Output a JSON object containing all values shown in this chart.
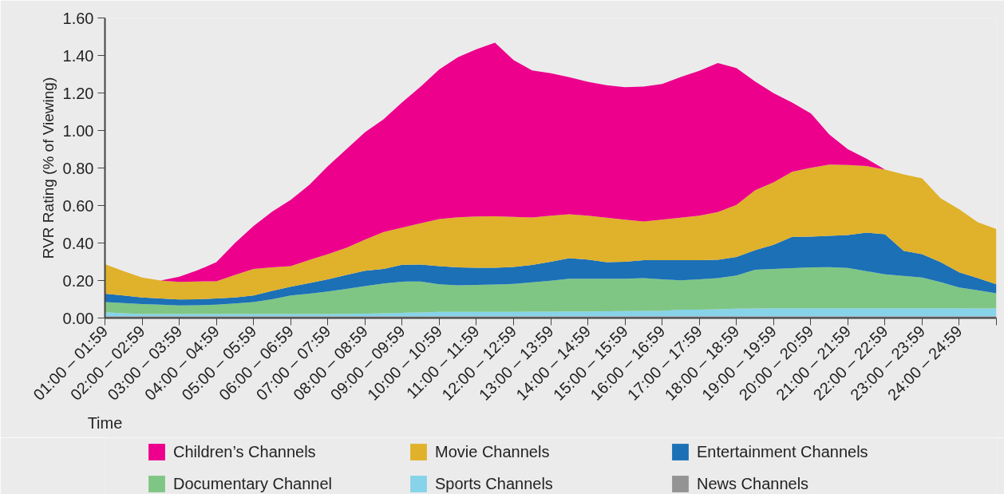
{
  "chart_data": {
    "type": "area",
    "stacked": true,
    "xlabel": "Time",
    "ylabel": "RVR Rating (% of Viewing)",
    "legend": "bottom",
    "grid": false,
    "categories": [
      "01:00 – 01:59",
      null,
      "02:00 – 02:59",
      null,
      "03:00 – 03:59",
      null,
      "04:00 – 04:59",
      null,
      "05:00 – 05:59",
      null,
      "06:00 – 06:59",
      null,
      "07:00 – 07:59",
      null,
      "08:00 – 08:59",
      null,
      "09:00 – 09:59",
      null,
      "10:00 – 10:59",
      null,
      "11:00 – 11:59",
      null,
      "12:00 – 12:59",
      null,
      "13:00 – 13:59",
      null,
      "14:00 – 14:59",
      null,
      "15:00 – 15:59",
      null,
      "16:00 – 16:59",
      null,
      "17:00 – 17:59",
      null,
      "18:00 – 18:59",
      null,
      "19:00 – 19:59",
      null,
      "20:00 – 20:59",
      null,
      "21:00 – 21:59",
      null,
      "22:00 – 22:59",
      null,
      "23:00 – 23:59",
      null,
      "24:00 – 24:59",
      null,
      null
    ],
    "ylim": [
      0,
      1.6
    ],
    "yticks": [
      {
        "value": 0,
        "label": "0.00"
      },
      {
        "value": 0.2,
        "label": "0.20"
      },
      {
        "value": 0.4,
        "label": "0.40"
      },
      {
        "value": 0.6,
        "label": "0.60"
      },
      {
        "value": 0.8,
        "label": "0.80"
      },
      {
        "value": 1.0,
        "label": "1.00"
      },
      {
        "value": 1.2,
        "label": "1.20"
      },
      {
        "value": 1.4,
        "label": "1.40"
      },
      {
        "value": 1.6,
        "label": "1.60"
      }
    ],
    "series": [
      {
        "name": "News Channels",
        "color": "#949494",
        "values": [
          0.01,
          0.01,
          0.01,
          0.01,
          0.01,
          0.01,
          0.01,
          0.01,
          0.01,
          0.01,
          0.01,
          0.01,
          0.01,
          0.01,
          0.01,
          0.01,
          0.01,
          0.01,
          0.01,
          0.01,
          0.01,
          0.01,
          0.01,
          0.01,
          0.01,
          0.01,
          0.01,
          0.01,
          0.01,
          0.01,
          0.01,
          0.01,
          0.01,
          0.01,
          0.01,
          0.01,
          0.01,
          0.01,
          0.01,
          0.01,
          0.01,
          0.01,
          0.01,
          0.01,
          0.01,
          0.01,
          0.01,
          0.01,
          0.01
        ]
      },
      {
        "name": "Sports Channels",
        "color": "#87d3e9",
        "values": [
          0.021,
          0.016,
          0.011,
          0.011,
          0.011,
          0.011,
          0.011,
          0.011,
          0.011,
          0.011,
          0.011,
          0.011,
          0.011,
          0.012,
          0.013,
          0.016,
          0.018,
          0.02,
          0.023,
          0.023,
          0.023,
          0.023,
          0.023,
          0.024,
          0.024,
          0.025,
          0.025,
          0.026,
          0.027,
          0.028,
          0.028,
          0.035,
          0.035,
          0.037,
          0.04,
          0.041,
          0.042,
          0.042,
          0.042,
          0.042,
          0.042,
          0.042,
          0.042,
          0.042,
          0.042,
          0.042,
          0.042,
          0.041,
          0.041
        ]
      },
      {
        "name": "Documentary Channel",
        "color": "#7fc685",
        "values": [
          0.054,
          0.054,
          0.054,
          0.05,
          0.046,
          0.047,
          0.05,
          0.057,
          0.064,
          0.079,
          0.099,
          0.109,
          0.121,
          0.133,
          0.147,
          0.158,
          0.166,
          0.165,
          0.147,
          0.141,
          0.144,
          0.146,
          0.149,
          0.156,
          0.165,
          0.175,
          0.175,
          0.174,
          0.173,
          0.175,
          0.168,
          0.156,
          0.161,
          0.166,
          0.177,
          0.206,
          0.21,
          0.214,
          0.218,
          0.219,
          0.215,
          0.198,
          0.181,
          0.173,
          0.164,
          0.139,
          0.111,
          0.097,
          0.081
        ]
      },
      {
        "name": "Entertainment Channels",
        "color": "#1b70b6",
        "values": [
          0.045,
          0.04,
          0.035,
          0.033,
          0.032,
          0.032,
          0.033,
          0.032,
          0.035,
          0.045,
          0.047,
          0.056,
          0.064,
          0.075,
          0.082,
          0.078,
          0.09,
          0.09,
          0.097,
          0.096,
          0.091,
          0.089,
          0.09,
          0.093,
          0.101,
          0.109,
          0.102,
          0.088,
          0.09,
          0.095,
          0.103,
          0.108,
          0.103,
          0.098,
          0.099,
          0.105,
          0.128,
          0.167,
          0.164,
          0.167,
          0.176,
          0.205,
          0.214,
          0.134,
          0.124,
          0.107,
          0.081,
          0.065,
          0.048
        ]
      },
      {
        "name": "Movie Channels",
        "color": "#e0b12b",
        "values": [
          0.157,
          0.13,
          0.106,
          0.096,
          0.094,
          0.095,
          0.092,
          0.12,
          0.142,
          0.125,
          0.11,
          0.124,
          0.134,
          0.145,
          0.166,
          0.196,
          0.198,
          0.22,
          0.251,
          0.267,
          0.274,
          0.275,
          0.267,
          0.253,
          0.246,
          0.234,
          0.234,
          0.237,
          0.225,
          0.207,
          0.216,
          0.226,
          0.237,
          0.254,
          0.277,
          0.319,
          0.333,
          0.347,
          0.367,
          0.38,
          0.373,
          0.356,
          0.344,
          0.407,
          0.405,
          0.34,
          0.336,
          0.298,
          0.295
        ]
      },
      {
        "name": "Children’s Channels",
        "color": "#ec008c",
        "values": [
          0,
          0,
          0,
          0,
          0.027,
          0.06,
          0.102,
          0.17,
          0.228,
          0.297,
          0.353,
          0.4,
          0.47,
          0.525,
          0.572,
          0.602,
          0.668,
          0.729,
          0.798,
          0.853,
          0.891,
          0.925,
          0.837,
          0.784,
          0.759,
          0.731,
          0.714,
          0.706,
          0.706,
          0.719,
          0.723,
          0.75,
          0.772,
          0.795,
          0.73,
          0.581,
          0.476,
          0.369,
          0.291,
          0.161,
          0.084,
          0.039,
          0,
          0,
          0,
          0,
          0,
          0,
          0
        ]
      }
    ]
  }
}
